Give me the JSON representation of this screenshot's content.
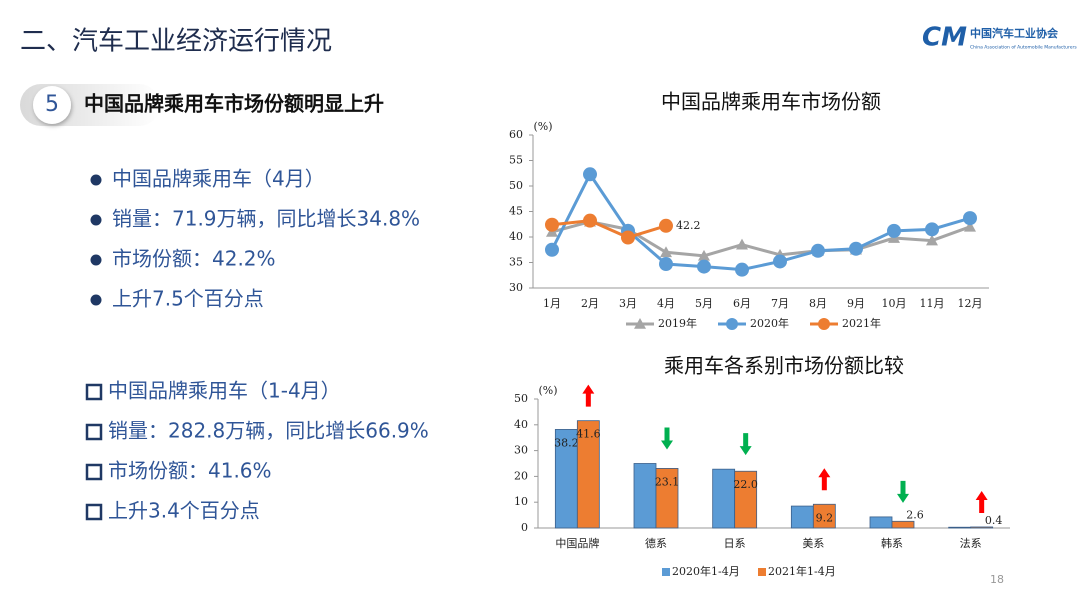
{
  "header": {
    "title": "二、汽车工业经济运行情况",
    "logo_mark": "CM",
    "logo_cn": "中国汽车工业协会",
    "logo_en": "China Association of Automobile Manufacturers"
  },
  "section": {
    "number": "5",
    "heading": "中国品牌乘用车市场份额明显上升"
  },
  "list1": [
    "中国品牌乘用车（4月）",
    "销量：71.9万辆，同比增长34.8%",
    "市场份额：42.2%",
    "上升7.5个百分点"
  ],
  "list2": [
    "中国品牌乘用车（1-4月）",
    "销量：282.8万辆，同比增长66.9%",
    "市场份额：41.6%",
    "上升3.4个百分点"
  ],
  "page_number": "18",
  "chart_data": [
    {
      "type": "line",
      "title": "中国品牌乘用车市场份额",
      "y_label": "(%)",
      "categories": [
        "1月",
        "2月",
        "3月",
        "4月",
        "5月",
        "6月",
        "7月",
        "8月",
        "9月",
        "10月",
        "11月",
        "12月"
      ],
      "series": [
        {
          "name": "2019年",
          "color": "#a5a5a5",
          "marker": "triangle",
          "values": [
            41,
            43,
            41.5,
            37,
            36.3,
            38.5,
            36.5,
            37.3,
            37.5,
            39.8,
            39.3,
            42
          ]
        },
        {
          "name": "2020年",
          "color": "#5b9bd5",
          "marker": "circle",
          "values": [
            37.5,
            52.3,
            41.2,
            34.7,
            34.2,
            33.6,
            35.2,
            37.3,
            37.7,
            41.2,
            41.5,
            43.7
          ]
        },
        {
          "name": "2021年",
          "color": "#ed7d31",
          "marker": "circle",
          "label_last": true,
          "values": [
            42.4,
            43.2,
            39.9,
            42.2,
            null,
            null,
            null,
            null,
            null,
            null,
            null,
            null
          ]
        }
      ],
      "ylim": [
        30,
        60
      ],
      "yticks": [
        30,
        35,
        40,
        45,
        50,
        55,
        60
      ],
      "grid": false
    },
    {
      "type": "bar",
      "title": "乘用车各系别市场份额比较",
      "y_label": "(%)",
      "categories": [
        "中国品牌",
        "德系",
        "日系",
        "美系",
        "韩系",
        "法系"
      ],
      "series": [
        {
          "name": "2020年1-4月",
          "color": "#5b9bd5",
          "values": [
            38.2,
            25,
            22.8,
            8.5,
            4.3,
            0.3
          ],
          "value_labels": [
            "38.2",
            null,
            null,
            null,
            null,
            null
          ]
        },
        {
          "name": "2021年1-4月",
          "color": "#ed7d31",
          "values": [
            41.6,
            23.1,
            22.0,
            9.2,
            2.6,
            0.4
          ],
          "value_labels": [
            "41.6",
            "23.1",
            "22.0",
            "9.2",
            "2.6",
            "0.4"
          ]
        }
      ],
      "ylim": [
        0,
        50
      ],
      "yticks": [
        0,
        10,
        20,
        30,
        40,
        50
      ],
      "grid": false,
      "up_color": "#ff0000",
      "down_color": "#00b050"
    }
  ]
}
